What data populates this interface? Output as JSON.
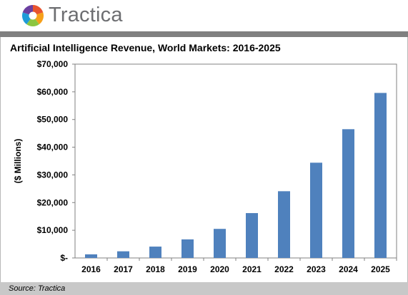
{
  "header": {
    "brand": "Tractica",
    "logo_colors": [
      "#e8542f",
      "#f6a01a",
      "#8cc63f",
      "#1f9bd8",
      "#6b3fa0"
    ]
  },
  "source": "Source: Tractica",
  "colors": {
    "bar": "#4f81bd",
    "divider": "#808080",
    "footer": "#c8c8c8"
  },
  "chart_data": {
    "type": "bar",
    "title": "Artificial Intelligence Revenue, World Markets: 2016-2025",
    "xlabel": "",
    "ylabel": "($ Millions)",
    "categories": [
      "2016",
      "2017",
      "2018",
      "2019",
      "2020",
      "2021",
      "2022",
      "2023",
      "2024",
      "2025"
    ],
    "values": [
      1300,
      2400,
      4100,
      6700,
      10500,
      16200,
      24100,
      34400,
      46500,
      59600
    ],
    "ylim": [
      0,
      70000
    ],
    "yticks": [
      0,
      10000,
      20000,
      30000,
      40000,
      50000,
      60000,
      70000
    ],
    "ytick_labels": [
      "$-",
      "$10,000",
      "$20,000",
      "$30,000",
      "$40,000",
      "$50,000",
      "$60,000",
      "$70,000"
    ],
    "grid": false,
    "legend": "none"
  }
}
